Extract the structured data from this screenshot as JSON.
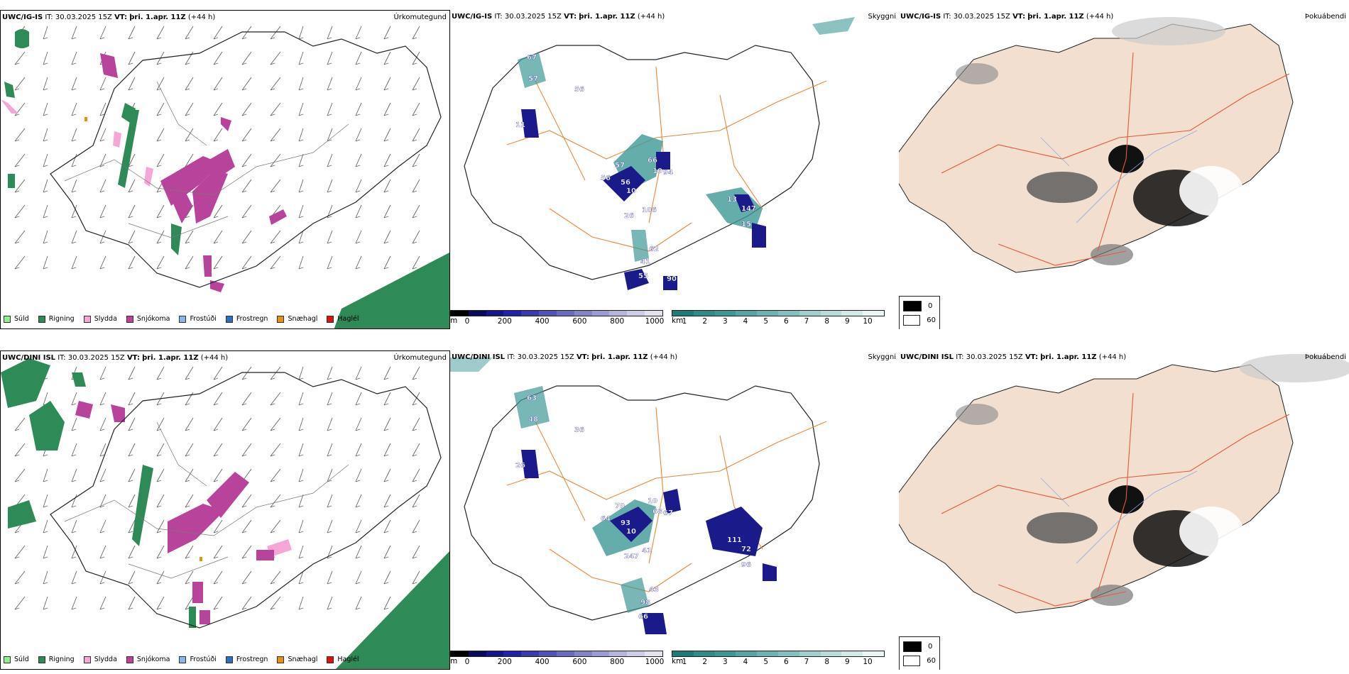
{
  "rows": [
    {
      "model": "UWC/IG-IS",
      "it_label": "IT:",
      "it_value": "30.03.2025 15Z",
      "vt_label": "VT:",
      "vt_value": "þri. 1.apr. 11Z",
      "lead": "(+44 h)",
      "precip_title": "Úrkomutegund",
      "vis_title": "Skyggni",
      "fog_title": "Þokuábendi",
      "vis_labels": [
        "67",
        "57",
        "11",
        "56",
        "66",
        "10",
        "94",
        "57",
        "56",
        "56",
        "10",
        "26",
        "106",
        "147",
        "13",
        "15",
        "62",
        "41",
        "55",
        "90"
      ]
    },
    {
      "model": "UWC/DINI ISL",
      "it_label": "IT:",
      "it_value": "30.03.2025 15Z",
      "vt_label": "VT:",
      "vt_value": "þri. 1.apr. 11Z",
      "lead": "(+44 h)",
      "precip_title": "Úrkomutegund",
      "vis_title": "Skyggni",
      "fog_title": "Þokuábendi",
      "vis_labels": [
        "63",
        "48",
        "26",
        "36",
        "10",
        "68",
        "67",
        "70",
        "64",
        "93",
        "10",
        "247",
        "41",
        "72",
        "111",
        "96",
        "43",
        "98",
        "66"
      ]
    }
  ],
  "precip_legend": [
    {
      "label": "Súld",
      "color": "#90ee90"
    },
    {
      "label": "Rigning",
      "color": "#2e8b57"
    },
    {
      "label": "Slydda",
      "color": "#f4a6d7"
    },
    {
      "label": "Snjókoma",
      "color": "#b8439a"
    },
    {
      "label": "Frostúði",
      "color": "#87b8e8"
    },
    {
      "label": "Frostregn",
      "color": "#2b6cc4"
    },
    {
      "label": "Snæhagl",
      "color": "#e8900f"
    },
    {
      "label": "Haglél",
      "color": "#e01010"
    }
  ],
  "ceiling_bar": {
    "unit": "m",
    "ticks": [
      "0",
      "200",
      "400",
      "600",
      "800",
      "1000"
    ],
    "colors": [
      "#000000",
      "#0a0a5a",
      "#15158a",
      "#2222a8",
      "#3b3bb0",
      "#5252b8",
      "#6a6ac0",
      "#8383c8",
      "#9c9cd2",
      "#b5b5dc",
      "#cdcde6",
      "#e3e3f0"
    ]
  },
  "vis_bar": {
    "unit": "km",
    "ticks": [
      "1",
      "2",
      "3",
      "4",
      "5",
      "6",
      "7",
      "8",
      "9",
      "10"
    ],
    "colors": [
      "#1f7a78",
      "#2f8a88",
      "#3f9896",
      "#56a5a3",
      "#6eb3b1",
      "#87c1bf",
      "#a0cfcd",
      "#badcdb",
      "#d3e9e8",
      "#ecf5f5"
    ]
  },
  "fog_legend": [
    {
      "value": "0",
      "color": "#000000"
    },
    {
      "value": "60",
      "color": "#ffffff"
    }
  ],
  "colors": {
    "rain": "#2e8b57",
    "snow": "#b8439a",
    "sleet": "#f4a6d7",
    "ice_pellets": "#e8900f",
    "road": "#e8883a",
    "fog_land": "#f2dfcf",
    "fog_road": "#e25a3a",
    "fog_river": "#8fa8e8",
    "ceiling_dark": "#1a1a8a",
    "vis_teal": "#3f9896"
  }
}
